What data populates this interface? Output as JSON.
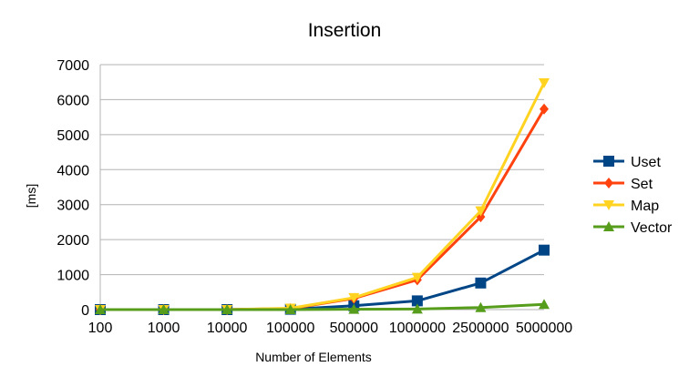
{
  "chart_data": {
    "type": "line",
    "title": "Insertion",
    "xlabel": "Number of Elements",
    "ylabel": "[ms]",
    "categories": [
      "100",
      "1000",
      "10000",
      "100000",
      "500000",
      "1000000",
      "2500000",
      "5000000"
    ],
    "ylim": [
      0,
      7000
    ],
    "yticks": [
      0,
      1000,
      2000,
      3000,
      4000,
      5000,
      6000,
      7000
    ],
    "grid": "horizontal",
    "legend": "right",
    "series": [
      {
        "name": "Uset",
        "color": "#004586",
        "marker": "square",
        "values": [
          0,
          0,
          0,
          10,
          110,
          250,
          760,
          1700
        ]
      },
      {
        "name": "Set",
        "color": "#ff420e",
        "marker": "diamond",
        "values": [
          0,
          0,
          0,
          30,
          320,
          850,
          2650,
          5730
        ]
      },
      {
        "name": "Map",
        "color": "#ffd320",
        "marker": "triangle-down",
        "values": [
          0,
          0,
          0,
          40,
          340,
          920,
          2820,
          6480
        ]
      },
      {
        "name": "Vector",
        "color": "#579d1c",
        "marker": "triangle-up",
        "values": [
          0,
          0,
          0,
          0,
          10,
          15,
          60,
          150
        ]
      }
    ]
  }
}
